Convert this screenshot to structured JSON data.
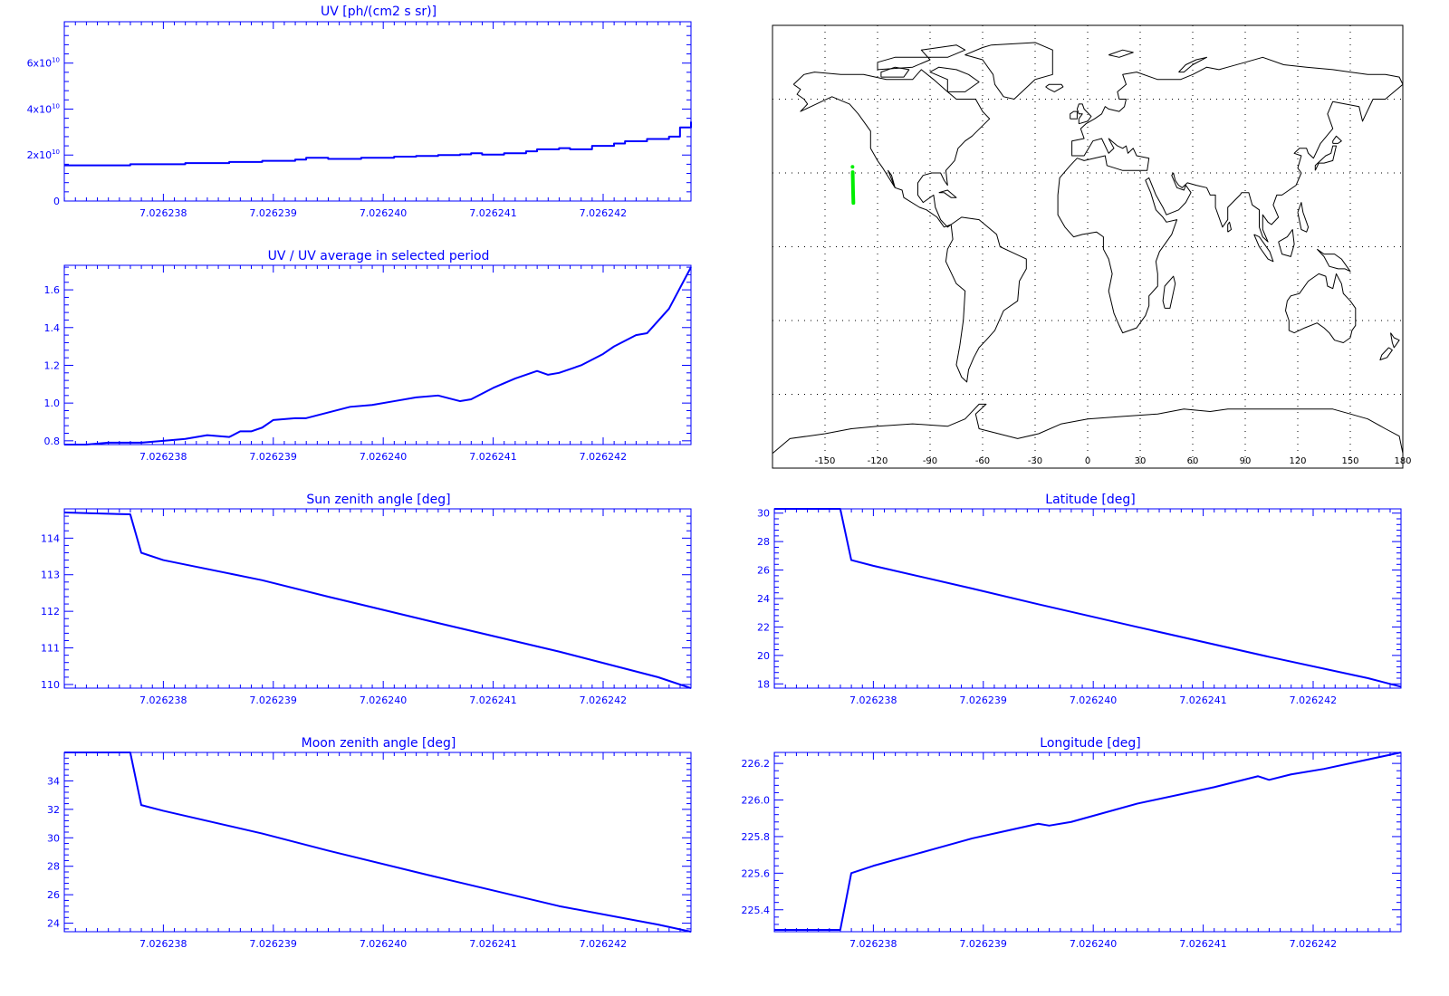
{
  "colors": {
    "axis": "#0000ff",
    "line": "#0000ff",
    "map": "#000000",
    "track": "#00ee00",
    "grid": "#000000"
  },
  "chart_data": [
    {
      "id": "uv",
      "type": "line",
      "step": true,
      "title": "UV [ph/(cm2 s sr)]",
      "xlim": [
        7.0262371,
        7.0262428
      ],
      "ylim": [
        0,
        78000000000
      ],
      "x_ticks": [
        7.026238,
        7.026239,
        7.02624,
        7.026241,
        7.026242
      ],
      "x_tick_labels": [
        "7.026238",
        "7.026239",
        "7.026240",
        "7.026241",
        "7.026242"
      ],
      "y_ticks": [
        0,
        20000000000,
        40000000000,
        60000000000
      ],
      "y_tick_labels": [
        {
          "base": "0",
          "exp": ""
        },
        {
          "base": "2x10",
          "exp": "10"
        },
        {
          "base": "4x10",
          "exp": "10"
        },
        {
          "base": "6x10",
          "exp": "10"
        }
      ],
      "x": [
        7.0262371,
        7.0262377,
        7.0262382,
        7.0262386,
        7.0262389,
        7.0262392,
        7.0262393,
        7.0262395,
        7.0262398,
        7.0262401,
        7.0262403,
        7.0262405,
        7.0262407,
        7.0262408,
        7.0262409,
        7.0262411,
        7.0262413,
        7.0262414,
        7.0262416,
        7.0262417,
        7.0262419,
        7.0262421,
        7.0262422,
        7.0262424,
        7.0262426,
        7.0262427,
        7.0262428
      ],
      "y": [
        15500000000,
        16000000000,
        16500000000,
        17000000000,
        17500000000,
        18000000000,
        18800000000,
        18300000000,
        18800000000,
        19300000000,
        19600000000,
        20000000000,
        20300000000,
        20800000000,
        20200000000,
        20800000000,
        21600000000,
        22500000000,
        23000000000,
        22500000000,
        24000000000,
        25000000000,
        26000000000,
        27000000000,
        28000000000,
        32000000000,
        34500000000
      ]
    },
    {
      "id": "uvratio",
      "type": "line",
      "title": "UV / UV average in selected period",
      "xlim": [
        7.0262371,
        7.0262428
      ],
      "ylim": [
        0.78,
        1.73
      ],
      "x_ticks": [
        7.026238,
        7.026239,
        7.02624,
        7.026241,
        7.026242
      ],
      "x_tick_labels": [
        "7.026238",
        "7.026239",
        "7.026240",
        "7.026241",
        "7.026242"
      ],
      "y_ticks": [
        0.8,
        1.0,
        1.2,
        1.4,
        1.6
      ],
      "y_tick_labels": [
        "0.8",
        "1.0",
        "1.2",
        "1.4",
        "1.6"
      ],
      "x": [
        7.0262371,
        7.0262373,
        7.0262375,
        7.0262378,
        7.026238,
        7.0262382,
        7.0262384,
        7.0262386,
        7.0262387,
        7.0262388,
        7.0262389,
        7.026239,
        7.0262392,
        7.0262393,
        7.0262395,
        7.0262397,
        7.0262399,
        7.0262401,
        7.0262403,
        7.0262405,
        7.0262407,
        7.0262408,
        7.0262409,
        7.026241,
        7.0262412,
        7.0262414,
        7.0262415,
        7.0262416,
        7.0262418,
        7.026242,
        7.0262421,
        7.0262423,
        7.0262424,
        7.0262426,
        7.0262428
      ],
      "y": [
        0.78,
        0.78,
        0.79,
        0.79,
        0.8,
        0.81,
        0.83,
        0.82,
        0.85,
        0.85,
        0.87,
        0.91,
        0.92,
        0.92,
        0.95,
        0.98,
        0.99,
        1.01,
        1.03,
        1.04,
        1.01,
        1.02,
        1.05,
        1.08,
        1.13,
        1.17,
        1.15,
        1.16,
        1.2,
        1.26,
        1.3,
        1.36,
        1.37,
        1.5,
        1.72
      ]
    },
    {
      "id": "sunzen",
      "type": "line",
      "title": "Sun zenith angle [deg]",
      "xlim": [
        7.0262371,
        7.0262428
      ],
      "ylim": [
        109.9,
        114.8
      ],
      "x_ticks": [
        7.026238,
        7.026239,
        7.02624,
        7.026241,
        7.026242
      ],
      "x_tick_labels": [
        "7.026238",
        "7.026239",
        "7.026240",
        "7.026241",
        "7.026242"
      ],
      "y_ticks": [
        110,
        111,
        112,
        113,
        114
      ],
      "y_tick_labels": [
        "110",
        "111",
        "112",
        "113",
        "114"
      ],
      "x": [
        7.0262371,
        7.0262377,
        7.0262378,
        7.026238,
        7.0262389,
        7.0262395,
        7.0262404,
        7.0262416,
        7.0262425,
        7.0262428
      ],
      "y": [
        114.7,
        114.65,
        113.6,
        113.4,
        112.85,
        112.4,
        111.75,
        110.9,
        110.2,
        109.9
      ]
    },
    {
      "id": "moonzen",
      "type": "line",
      "title": "Moon zenith angle [deg]",
      "xlim": [
        7.0262371,
        7.0262428
      ],
      "ylim": [
        23.4,
        36.0
      ],
      "x_ticks": [
        7.026238,
        7.026239,
        7.02624,
        7.026241,
        7.026242
      ],
      "x_tick_labels": [
        "7.026238",
        "7.026239",
        "7.026240",
        "7.026241",
        "7.026242"
      ],
      "y_ticks": [
        24,
        26,
        28,
        30,
        32,
        34
      ],
      "y_tick_labels": [
        "24",
        "26",
        "28",
        "30",
        "32",
        "34"
      ],
      "x": [
        7.0262371,
        7.0262377,
        7.0262378,
        7.026238,
        7.0262389,
        7.0262395,
        7.0262404,
        7.0262416,
        7.0262425,
        7.0262428
      ],
      "y": [
        36.0,
        36.0,
        32.3,
        31.9,
        30.3,
        29.1,
        27.4,
        25.2,
        23.9,
        23.4
      ]
    },
    {
      "id": "lat",
      "type": "line",
      "title": "Latitude [deg]",
      "xlim": [
        7.0262371,
        7.0262428
      ],
      "ylim": [
        17.7,
        30.3
      ],
      "x_ticks": [
        7.026238,
        7.026239,
        7.02624,
        7.026241,
        7.026242
      ],
      "x_tick_labels": [
        "7.026238",
        "7.026239",
        "7.026240",
        "7.026241",
        "7.026242"
      ],
      "y_ticks": [
        18,
        20,
        22,
        24,
        26,
        28,
        30
      ],
      "y_tick_labels": [
        "18",
        "20",
        "22",
        "24",
        "26",
        "28",
        "30"
      ],
      "x": [
        7.0262371,
        7.0262377,
        7.0262378,
        7.026238,
        7.0262389,
        7.0262395,
        7.0262404,
        7.0262416,
        7.0262425,
        7.0262428
      ],
      "y": [
        30.3,
        30.3,
        26.7,
        26.3,
        24.7,
        23.6,
        22.0,
        19.9,
        18.4,
        17.8
      ]
    },
    {
      "id": "lon",
      "type": "line",
      "title": "Longitude [deg]",
      "xlim": [
        7.0262371,
        7.0262428
      ],
      "ylim": [
        225.28,
        226.26
      ],
      "x_ticks": [
        7.026238,
        7.026239,
        7.02624,
        7.026241,
        7.026242
      ],
      "x_tick_labels": [
        "7.026238",
        "7.026239",
        "7.026240",
        "7.026241",
        "7.026242"
      ],
      "y_ticks": [
        225.4,
        225.6,
        225.8,
        226.0,
        226.2
      ],
      "y_tick_labels": [
        "225.4",
        "225.6",
        "225.8",
        "226.0",
        "226.2"
      ],
      "x": [
        7.0262371,
        7.0262377,
        7.0262378,
        7.026238,
        7.0262386,
        7.0262389,
        7.0262392,
        7.0262395,
        7.0262396,
        7.0262398,
        7.0262404,
        7.0262411,
        7.0262415,
        7.0262416,
        7.0262418,
        7.0262421,
        7.0262428
      ],
      "y": [
        225.29,
        225.29,
        225.6,
        225.64,
        225.74,
        225.79,
        225.83,
        225.87,
        225.86,
        225.88,
        225.98,
        226.07,
        226.13,
        226.11,
        226.14,
        226.17,
        226.26
      ]
    }
  ],
  "map": {
    "type": "map",
    "lon_range": [
      -180,
      180
    ],
    "lat_range": [
      -90,
      90
    ],
    "lon_ticks": [
      -150,
      -120,
      -90,
      -60,
      -30,
      0,
      30,
      60,
      90,
      120,
      150,
      180
    ],
    "lon_tick_labels": [
      "-150",
      "-120",
      "-90",
      "-60",
      "-30",
      "0",
      "30",
      "60",
      "90",
      "120",
      "150",
      "180"
    ],
    "lat_gridlines": [
      -60,
      -30,
      0,
      30,
      60
    ],
    "track": {
      "lon": [
        -134.2,
        -134.0,
        -133.8
      ],
      "lat": [
        30.3,
        23.0,
        17.8
      ]
    },
    "track_marker": {
      "lon": -134.3,
      "lat": 32.5
    }
  }
}
